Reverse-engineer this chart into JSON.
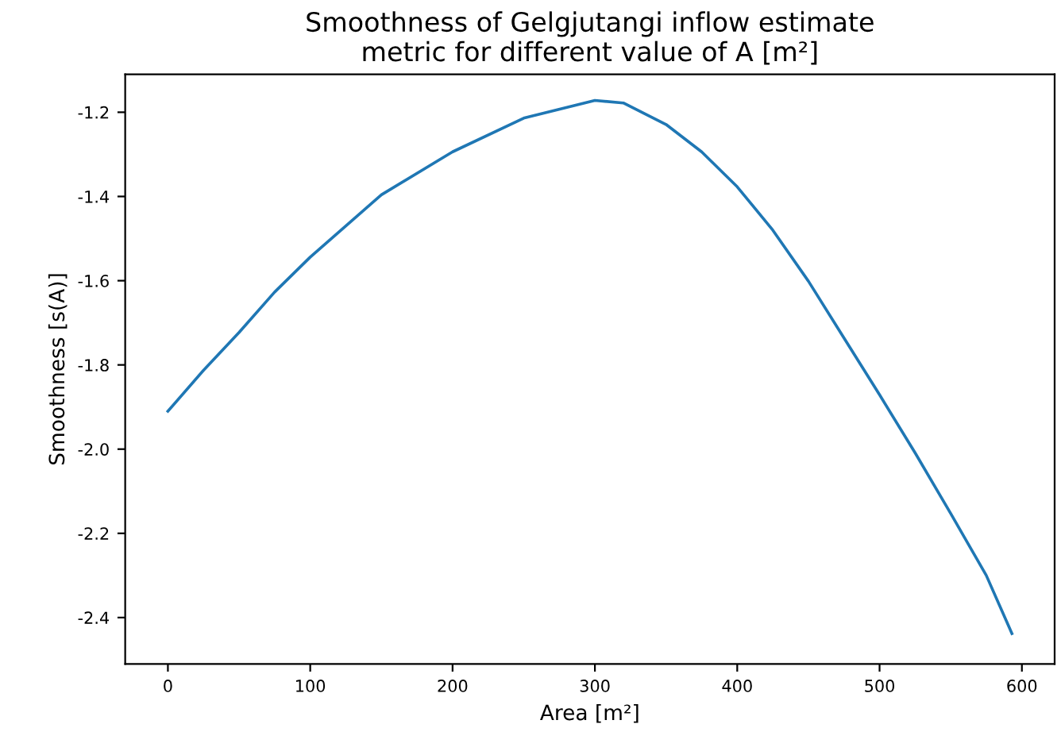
{
  "chart_data": {
    "type": "line",
    "title": "Smoothness of Gelgjutangi inflow estimate\nmetric for different value of A [m²]",
    "xlabel": "Area [m²]",
    "ylabel": "Smoothness [s(A)]",
    "series": [
      {
        "color": "#1f77b4",
        "x": [
          0,
          25,
          50,
          75,
          100,
          150,
          200,
          250,
          300,
          320,
          350,
          375,
          400,
          425,
          450,
          475,
          500,
          525,
          550,
          575,
          593
        ],
        "values": [
          -1.91,
          -1.813,
          -1.723,
          -1.627,
          -1.544,
          -1.396,
          -1.294,
          -1.214,
          -1.172,
          -1.178,
          -1.229,
          -1.294,
          -1.377,
          -1.48,
          -1.601,
          -1.736,
          -1.871,
          -2.009,
          -2.153,
          -2.3,
          -2.438
        ]
      }
    ],
    "xlim": [
      -30,
      623
    ],
    "ylim": [
      -2.51,
      -1.11
    ],
    "xticks": [
      0,
      100,
      200,
      300,
      400,
      500,
      600
    ],
    "yticks": [
      {
        "value": -2.4,
        "label": "-2.4"
      },
      {
        "value": -2.2,
        "label": "-2.2"
      },
      {
        "value": -2.0,
        "label": "-2.0"
      },
      {
        "value": -1.8,
        "label": "-1.8"
      },
      {
        "value": -1.6,
        "label": "-1.6"
      },
      {
        "value": -1.4,
        "label": "-1.4"
      },
      {
        "value": -1.2,
        "label": "-1.2"
      }
    ],
    "grid": false,
    "legend": false,
    "marker": "none",
    "line_style": "solid"
  }
}
